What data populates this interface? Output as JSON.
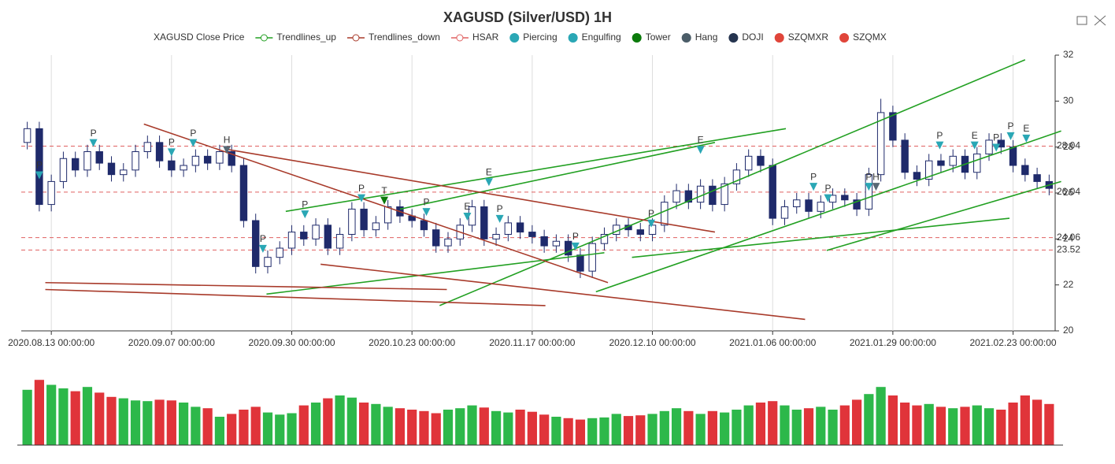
{
  "chart_data": {
    "type": "candlestick",
    "title": "XAGUSD (Silver/USD) 1H",
    "legend": [
      {
        "name": "XAGUSD Close Price",
        "color": "#6b7280",
        "shape": "none"
      },
      {
        "name": "Trendlines_up",
        "color": "#22a022",
        "shape": "line"
      },
      {
        "name": "Trendlines_down",
        "color": "#a83a2a",
        "shape": "line"
      },
      {
        "name": "HSAR",
        "color": "#e06060",
        "shape": "line"
      },
      {
        "name": "Piercing",
        "color": "#2aa7b5",
        "shape": "dot"
      },
      {
        "name": "Engulfing",
        "color": "#2aa7b5",
        "shape": "dot"
      },
      {
        "name": "Tower",
        "color": "#0b7a0b",
        "shape": "dot"
      },
      {
        "name": "Hang",
        "color": "#4b5d68",
        "shape": "dot"
      },
      {
        "name": "DOJI",
        "color": "#25344f",
        "shape": "dot"
      },
      {
        "name": "SZQMXR",
        "color": "#e0453a",
        "shape": "dot"
      },
      {
        "name": "SZQMX",
        "color": "#e0453a",
        "shape": "dot"
      }
    ],
    "categories": [
      null,
      null,
      "2020.08.13 00:00:00",
      null,
      null,
      null,
      null,
      null,
      null,
      null,
      null,
      null,
      "2020.09.07 00:00:00",
      null,
      null,
      null,
      null,
      null,
      null,
      null,
      null,
      null,
      "2020.09.30 00:00:00",
      null,
      null,
      null,
      null,
      null,
      null,
      null,
      null,
      null,
      "2020.10.23 00:00:00",
      null,
      null,
      null,
      null,
      null,
      null,
      null,
      null,
      null,
      "2020.11.17 00:00:00",
      null,
      null,
      null,
      null,
      null,
      null,
      null,
      null,
      null,
      "2020.12.10 00:00:00",
      null,
      null,
      null,
      null,
      null,
      null,
      null,
      null,
      null,
      "2021.01.06 00:00:00",
      null,
      null,
      null,
      null,
      null,
      null,
      null,
      null,
      null,
      "2021.01.29 00:00:00",
      null,
      null,
      null,
      null,
      null,
      null,
      null,
      null,
      null,
      "2021.02.23 00:00:00",
      null,
      null,
      null
    ],
    "open": [
      28.2,
      28.8,
      25.5,
      26.5,
      27.5,
      27,
      27.8,
      27.3,
      26.8,
      27,
      27.8,
      28.2,
      27.4,
      27,
      27.2,
      27.6,
      27.3,
      27.8,
      27.2,
      24.8,
      22.8,
      23.2,
      23.6,
      24.3,
      24,
      24.6,
      23.6,
      24.2,
      25.3,
      24.4,
      24.7,
      25.4,
      25,
      24.8,
      24.4,
      23.7,
      24,
      24.6,
      25.4,
      24,
      24.2,
      24.7,
      24.3,
      24.1,
      23.7,
      23.9,
      23.3,
      22.6,
      23.8,
      24.2,
      24.6,
      24.4,
      24.2,
      24.6,
      25.6,
      26.1,
      25.6,
      26.3,
      25.5,
      26.4,
      27,
      27.6,
      27.2,
      24.9,
      25.4,
      25.7,
      25.2,
      25.6,
      25.9,
      25.7,
      25.3,
      26.8,
      29.5,
      28.3,
      26.9,
      26.6,
      27.4,
      27.2,
      27.6,
      26.9,
      27.7,
      28.3,
      28,
      27.2,
      26.8,
      26.5
    ],
    "high": [
      29.1,
      29.1,
      26.8,
      27.8,
      27.8,
      28.1,
      28.1,
      27.6,
      27.3,
      28.1,
      28.5,
      28.5,
      27.7,
      27.5,
      27.9,
      27.9,
      28.1,
      28.1,
      27.5,
      25.1,
      23.5,
      23.9,
      24.6,
      24.6,
      24.9,
      24.9,
      24.5,
      25.6,
      25.6,
      25,
      25.7,
      25.7,
      25.3,
      25.1,
      24.7,
      24.3,
      24.9,
      25.7,
      25.7,
      24.5,
      25,
      25,
      24.6,
      24.4,
      24.2,
      24.2,
      23.6,
      24.1,
      24.5,
      24.9,
      24.9,
      24.7,
      24.9,
      25.9,
      26.4,
      26.4,
      26.6,
      26.6,
      26.7,
      27.3,
      27.9,
      27.9,
      27.5,
      25.7,
      26,
      26,
      25.9,
      26.2,
      26.2,
      26,
      27.1,
      30.1,
      29.8,
      28.6,
      27.2,
      27.7,
      27.7,
      27.9,
      27.9,
      28,
      28.6,
      28.6,
      28.3,
      27.5,
      27.1,
      26.8
    ],
    "low": [
      27.9,
      25.2,
      25.2,
      26.2,
      26.7,
      26.7,
      27,
      26.5,
      26.5,
      26.7,
      27.5,
      27.1,
      26.7,
      26.7,
      26.9,
      27,
      27,
      26.9,
      24.5,
      22.5,
      22.5,
      22.9,
      23.3,
      23.7,
      23.7,
      23.3,
      23.3,
      23.9,
      24.1,
      24.1,
      24.4,
      24.7,
      24.5,
      24.1,
      23.4,
      23.4,
      23.7,
      24.3,
      23.7,
      23.7,
      23.9,
      24,
      23.8,
      23.4,
      23.4,
      23,
      22.3,
      22.3,
      23.5,
      23.9,
      24.1,
      23.9,
      23.9,
      24.3,
      25.3,
      25.3,
      25.3,
      25.2,
      25.2,
      26.1,
      26.7,
      26.9,
      24.6,
      24.6,
      25.1,
      24.9,
      24.9,
      25.3,
      25.4,
      25,
      25,
      26.5,
      28,
      26.6,
      26.3,
      26.3,
      26.9,
      26.9,
      26.6,
      26.6,
      27.4,
      27.7,
      26.9,
      26.5,
      26.2,
      25.9
    ],
    "close": [
      28.8,
      25.5,
      26.5,
      27.5,
      27,
      27.8,
      27.3,
      26.8,
      27,
      27.8,
      28.2,
      27.4,
      27,
      27.2,
      27.6,
      27.3,
      27.8,
      27.2,
      24.8,
      22.8,
      23.2,
      23.6,
      24.3,
      24,
      24.6,
      23.6,
      24.2,
      25.3,
      24.4,
      24.7,
      25.4,
      25,
      24.8,
      24.4,
      23.7,
      24,
      24.6,
      25.4,
      24,
      24.2,
      24.7,
      24.3,
      24.1,
      23.7,
      23.9,
      23.3,
      22.6,
      23.8,
      24.2,
      24.6,
      24.4,
      24.2,
      24.6,
      25.6,
      26.1,
      25.6,
      26.3,
      25.5,
      26.4,
      27,
      27.6,
      27.2,
      24.9,
      25.4,
      25.7,
      25.2,
      25.6,
      25.9,
      25.7,
      25.3,
      26.8,
      29.5,
      28.3,
      26.9,
      26.6,
      27.4,
      27.2,
      27.6,
      26.9,
      27.7,
      28.3,
      28,
      27.2,
      26.8,
      26.5,
      26.2
    ],
    "volume": [
      78,
      92,
      85,
      80,
      76,
      82,
      74,
      68,
      66,
      63,
      62,
      64,
      63,
      60,
      54,
      52,
      40,
      44,
      50,
      54,
      46,
      43,
      45,
      56,
      60,
      66,
      70,
      67,
      60,
      58,
      54,
      52,
      50,
      48,
      45,
      50,
      52,
      56,
      53,
      48,
      46,
      50,
      47,
      43,
      40,
      38,
      36,
      38,
      39,
      44,
      41,
      42,
      44,
      48,
      52,
      48,
      44,
      48,
      46,
      50,
      56,
      60,
      62,
      56,
      50,
      52,
      54,
      50,
      56,
      64,
      72,
      82,
      70,
      60,
      56,
      58,
      54,
      52,
      54,
      56,
      52,
      50,
      60,
      70,
      64,
      58
    ],
    "up_color": "#ffffff",
    "down_color": "#1f2a6b",
    "volume_up_color": "#2db84a",
    "volume_down_color": "#e0343a",
    "ylim": [
      20,
      32
    ],
    "yticks": [
      20,
      22,
      24,
      26,
      28,
      30,
      32
    ],
    "levels": [
      28.04,
      26.04,
      24.06,
      23.52
    ],
    "level_color": "#e06060",
    "trendlines_up": [
      {
        "x": [
          21.5,
          63.1
        ],
        "y": [
          25.2,
          28.8
        ]
      },
      {
        "x": [
          19.9,
          48
        ],
        "y": [
          21.6,
          23.4
        ]
      },
      {
        "x": [
          34.3,
          83
        ],
        "y": [
          21.1,
          31.8
        ]
      },
      {
        "x": [
          47.3,
          86
        ],
        "y": [
          21.7,
          28.7
        ]
      },
      {
        "x": [
          50.3,
          81.7
        ],
        "y": [
          23.2,
          24.9
        ]
      },
      {
        "x": [
          31,
          57.2
        ],
        "y": [
          25.3,
          28.2
        ]
      },
      {
        "x": [
          66.5,
          86
        ],
        "y": [
          23.5,
          26.5
        ]
      }
    ],
    "trendlines_down": [
      {
        "x": [
          9.7,
          48.3
        ],
        "y": [
          29,
          22.1
        ]
      },
      {
        "x": [
          16.6,
          57.2
        ],
        "y": [
          27.9,
          24.3
        ]
      },
      {
        "x": [
          1.5,
          34.9
        ],
        "y": [
          22.1,
          21.8
        ]
      },
      {
        "x": [
          1.5,
          43.1
        ],
        "y": [
          21.8,
          21.1
        ]
      },
      {
        "x": [
          24.4,
          64.7
        ],
        "y": [
          22.9,
          20.5
        ]
      }
    ],
    "up_color_line": "#22a022",
    "down_color_line": "#a83a2a",
    "markers": [
      {
        "label": "P",
        "x": 1,
        "y": 26.6,
        "color": "#2aa7b5"
      },
      {
        "label": "P",
        "x": 5.5,
        "y": 28,
        "color": "#2aa7b5"
      },
      {
        "label": "P",
        "x": 12,
        "y": 27.6,
        "color": "#2aa7b5"
      },
      {
        "label": "P",
        "x": 13.8,
        "y": 28,
        "color": "#2aa7b5"
      },
      {
        "label": "H",
        "x": 16.6,
        "y": 27.7,
        "color": "#586874"
      },
      {
        "label": "P",
        "x": 19.6,
        "y": 23.4,
        "color": "#2aa7b5"
      },
      {
        "label": "P",
        "x": 23.1,
        "y": 24.9,
        "color": "#2aa7b5"
      },
      {
        "label": "P",
        "x": 27.8,
        "y": 25.6,
        "color": "#2aa7b5"
      },
      {
        "label": "T",
        "x": 29.7,
        "y": 25.5,
        "color": "#0b7a0b"
      },
      {
        "label": "P",
        "x": 33.2,
        "y": 25,
        "color": "#2aa7b5"
      },
      {
        "label": "E",
        "x": 36.6,
        "y": 24.8,
        "color": "#2aa7b5"
      },
      {
        "label": "E",
        "x": 38.4,
        "y": 26.3,
        "color": "#2aa7b5"
      },
      {
        "label": "P",
        "x": 39.3,
        "y": 24.7,
        "color": "#2aa7b5"
      },
      {
        "label": "P",
        "x": 45.6,
        "y": 23.5,
        "color": "#2aa7b5"
      },
      {
        "label": "P",
        "x": 51.9,
        "y": 24.5,
        "color": "#2aa7b5"
      },
      {
        "label": "E",
        "x": 56,
        "y": 27.7,
        "color": "#2aa7b5"
      },
      {
        "label": "P",
        "x": 65.4,
        "y": 26.1,
        "color": "#2aa7b5"
      },
      {
        "label": "P",
        "x": 66.6,
        "y": 25.6,
        "color": "#2aa7b5"
      },
      {
        "label": "P",
        "x": 70,
        "y": 26.1,
        "color": "#2aa7b5"
      },
      {
        "label": "H",
        "x": 70.6,
        "y": 26.1,
        "color": "#586874"
      },
      {
        "label": "P",
        "x": 75.9,
        "y": 27.9,
        "color": "#2aa7b5"
      },
      {
        "label": "E",
        "x": 78.8,
        "y": 27.9,
        "color": "#2aa7b5"
      },
      {
        "label": "P",
        "x": 80.6,
        "y": 27.8,
        "color": "#2aa7b5"
      },
      {
        "label": "P",
        "x": 81.8,
        "y": 28.3,
        "color": "#2aa7b5"
      },
      {
        "label": "E",
        "x": 83.1,
        "y": 28.2,
        "color": "#2aa7b5"
      }
    ]
  }
}
